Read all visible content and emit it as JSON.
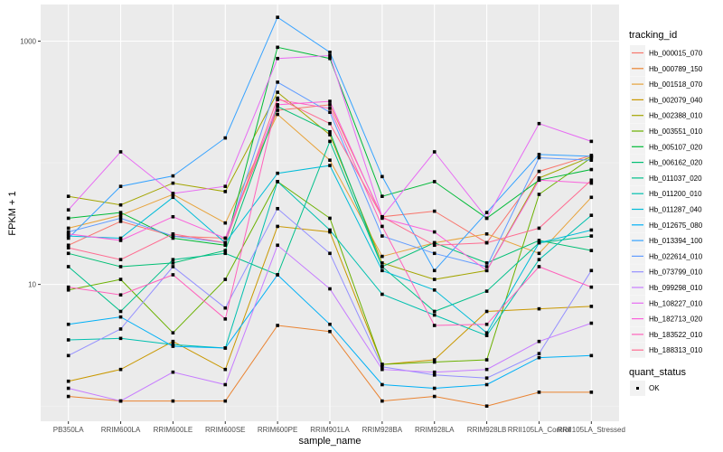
{
  "chart_data": {
    "type": "line",
    "xlabel": "sample_name",
    "ylabel": "FPKM + 1",
    "yscale": "log10",
    "ylim": [
      0.75,
      2000
    ],
    "y_ticks": [
      {
        "value": 10,
        "label": "10"
      },
      {
        "value": 1000,
        "label": "1000"
      }
    ],
    "grid": true,
    "legend_position": "right",
    "categories": [
      "PB350LA",
      "RRIM600LA",
      "RRIM600LE",
      "RRIM600SE",
      "RRIM600PE",
      "RRIM901LA",
      "RRIM928BA",
      "RRIM928LA",
      "RRIM928LB",
      "RRII105LA_Control",
      "RRII105LA_Stressed"
    ],
    "legend_color_title": "tracking_id",
    "legend_shape_title": "quant_status",
    "legend_shape_items": [
      "OK"
    ],
    "series": [
      {
        "name": "Hb_000015_070",
        "color": "#F8766D",
        "values": [
          21,
          33,
          25,
          24,
          270,
          300,
          36,
          40,
          22,
          85,
          115
        ]
      },
      {
        "name": "Hb_000789_150",
        "color": "#EA8331",
        "values": [
          1.2,
          1.1,
          1.1,
          1.1,
          4.6,
          4.1,
          1.1,
          1.2,
          1.0,
          1.3,
          1.3
        ]
      },
      {
        "name": "Hb_001518_070",
        "color": "#E7A33B",
        "values": [
          29,
          37,
          55,
          32,
          250,
          105,
          17,
          22,
          26,
          18,
          52
        ]
      },
      {
        "name": "Hb_002079_040",
        "color": "#C99800",
        "values": [
          1.6,
          2.0,
          3.4,
          2.0,
          30,
          27,
          2.2,
          2.4,
          6.0,
          6.3,
          6.6
        ]
      },
      {
        "name": "Hb_002388_010",
        "color": "#A3A500",
        "values": [
          53,
          45,
          68,
          58,
          380,
          170,
          15,
          11,
          13,
          75,
          112
        ]
      },
      {
        "name": "Hb_003551_010",
        "color": "#6BB100",
        "values": [
          9,
          11,
          4.0,
          11,
          70,
          35,
          2.2,
          2.3,
          2.4,
          55,
          110
        ]
      },
      {
        "name": "Hb_005107_020",
        "color": "#00BA38",
        "values": [
          35,
          39,
          24,
          21,
          890,
          720,
          53,
          70,
          35,
          72,
          88
        ]
      },
      {
        "name": "Hb_006162_020",
        "color": "#00BF74",
        "values": [
          18,
          14,
          15,
          19,
          290,
          180,
          14,
          22,
          15,
          23,
          19
        ]
      },
      {
        "name": "Hb_011037_020",
        "color": "#00C08B",
        "values": [
          14,
          6.0,
          16,
          18,
          12,
          150,
          14,
          6.0,
          8.8,
          22,
          25
        ]
      },
      {
        "name": "Hb_011200_010",
        "color": "#00C0AF",
        "values": [
          3.5,
          3.6,
          3.2,
          3.0,
          70,
          28,
          8.3,
          5.6,
          3.8,
          16,
          37
        ]
      },
      {
        "name": "Hb_011287_040",
        "color": "#00BCD8",
        "values": [
          25,
          24,
          52,
          22,
          82,
          95,
          13,
          9.0,
          4.0,
          22,
          28
        ]
      },
      {
        "name": "Hb_012675_080",
        "color": "#00B0F6",
        "values": [
          4.7,
          5.4,
          3.1,
          3.0,
          12,
          4.7,
          1.5,
          1.4,
          1.5,
          2.5,
          2.6
        ]
      },
      {
        "name": "Hb_013394_100",
        "color": "#35A2FF",
        "values": [
          24,
          64,
          78,
          160,
          1570,
          810,
          77,
          13,
          39,
          117,
          113
        ]
      },
      {
        "name": "Hb_022614_010",
        "color": "#619CFF",
        "values": [
          27,
          35,
          25,
          22,
          460,
          260,
          25,
          18,
          14,
          110,
          105
        ]
      },
      {
        "name": "Hb_073799_010",
        "color": "#9590FF",
        "values": [
          2.6,
          4.3,
          14,
          6.4,
          42,
          18,
          2.1,
          1.8,
          1.7,
          2.7,
          13
        ]
      },
      {
        "name": "Hb_099298_010",
        "color": "#C77CFF",
        "values": [
          1.4,
          1.1,
          1.9,
          1.5,
          21,
          9.2,
          2.0,
          1.9,
          2.0,
          3.4,
          4.8
        ]
      },
      {
        "name": "Hb_108227_010",
        "color": "#E76BF3",
        "values": [
          41,
          123,
          56,
          64,
          720,
          760,
          36,
          123,
          35,
          210,
          150
        ]
      },
      {
        "name": "Hb_182713_020",
        "color": "#FA62DB",
        "values": [
          26,
          23,
          36,
          24,
          300,
          320,
          35,
          27,
          13,
          72,
          68
        ]
      },
      {
        "name": "Hb_183522_010",
        "color": "#FF62BC",
        "values": [
          9.5,
          8.2,
          12,
          5.2,
          330,
          280,
          30,
          4.6,
          4.7,
          14,
          9.5
        ]
      },
      {
        "name": "Hb_188313_010",
        "color": "#FF6C91",
        "values": [
          20,
          16,
          26,
          22,
          340,
          210,
          36,
          21,
          22,
          29,
          72
        ]
      }
    ]
  }
}
